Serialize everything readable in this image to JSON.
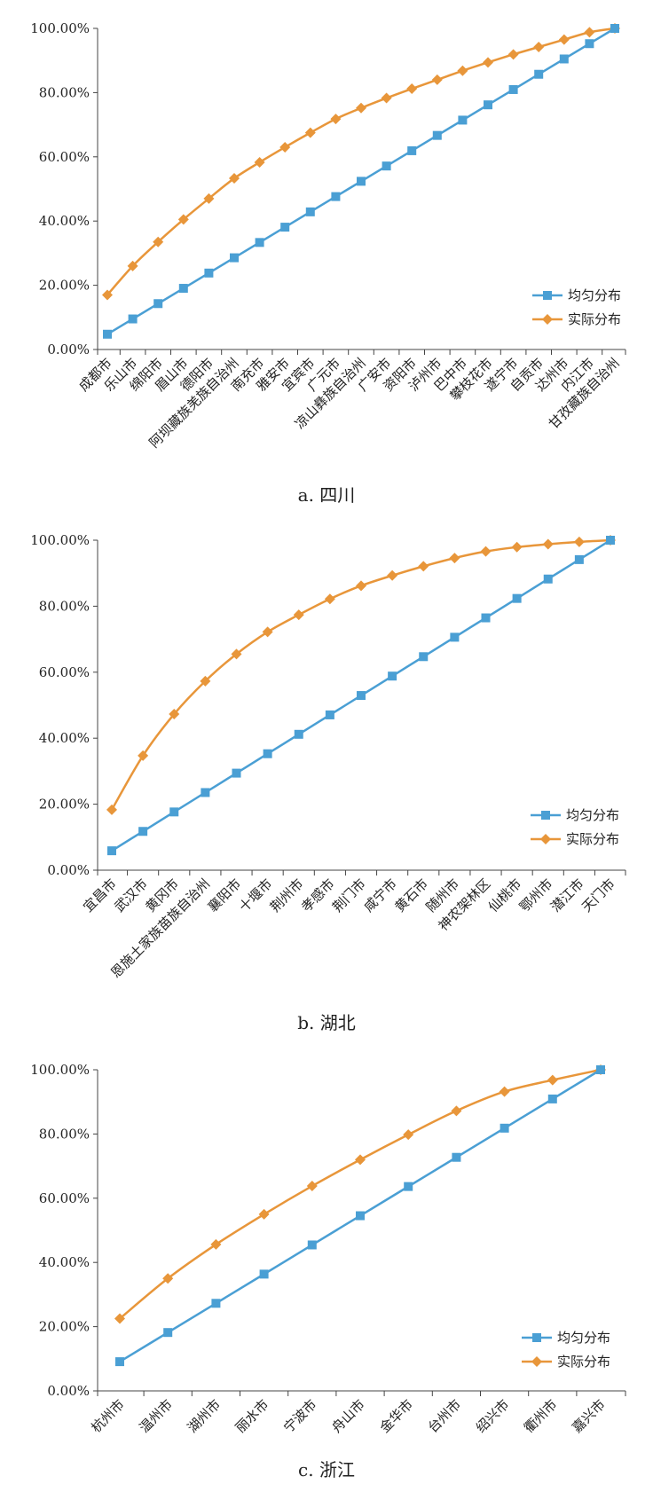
{
  "chart_data": [
    {
      "type": "line",
      "caption": "a. 四川",
      "ylim": [
        0,
        100
      ],
      "yticks": [
        "0.00%",
        "20.00%",
        "40.00%",
        "60.00%",
        "80.00%",
        "100.00%"
      ],
      "categories": [
        "成都市",
        "乐山市",
        "绵阳市",
        "眉山市",
        "德阳市",
        "阿坝藏族羌族自治州",
        "南充市",
        "雅安市",
        "宜宾市",
        "广元市",
        "凉山彝族自治州",
        "广安市",
        "资阳市",
        "泸州市",
        "巴中市",
        "攀枝花市",
        "遂宁市",
        "自贡市",
        "达州市",
        "内江市",
        "甘孜藏族自治州"
      ],
      "series": [
        {
          "name": "均匀分布",
          "color": "#4a9fd4",
          "marker": "square",
          "values": [
            4.76,
            9.52,
            14.29,
            19.05,
            23.81,
            28.57,
            33.33,
            38.1,
            42.86,
            47.62,
            52.38,
            57.14,
            61.9,
            66.67,
            71.43,
            76.19,
            80.95,
            85.71,
            90.48,
            95.24,
            100
          ]
        },
        {
          "name": "实际分布",
          "color": "#e8963a",
          "marker": "diamond",
          "values": [
            17.0,
            26.0,
            33.5,
            40.5,
            47.0,
            53.3,
            58.3,
            63.0,
            67.5,
            71.8,
            75.2,
            78.3,
            81.2,
            84.0,
            86.8,
            89.4,
            91.9,
            94.2,
            96.5,
            98.8,
            100
          ]
        }
      ],
      "legend_position": "bottom-right",
      "grid": false
    },
    {
      "type": "line",
      "caption": "b. 湖北",
      "ylim": [
        0,
        100
      ],
      "yticks": [
        "0.00%",
        "20.00%",
        "40.00%",
        "60.00%",
        "80.00%",
        "100.00%"
      ],
      "categories": [
        "宜昌市",
        "武汉市",
        "黄冈市",
        "恩施土家族苗族自治州",
        "襄阳市",
        "十堰市",
        "荆州市",
        "孝感市",
        "荆门市",
        "咸宁市",
        "黄石市",
        "随州市",
        "神农架林区",
        "仙桃市",
        "鄂州市",
        "潜江市",
        "天门市"
      ],
      "series": [
        {
          "name": "均匀分布",
          "color": "#4a9fd4",
          "marker": "square",
          "values": [
            5.88,
            11.76,
            17.65,
            23.53,
            29.41,
            35.29,
            41.18,
            47.06,
            52.94,
            58.82,
            64.71,
            70.59,
            76.47,
            82.35,
            88.24,
            94.12,
            100
          ]
        },
        {
          "name": "实际分布",
          "color": "#e8963a",
          "marker": "diamond",
          "values": [
            18.3,
            34.7,
            47.3,
            57.3,
            65.5,
            72.2,
            77.4,
            82.2,
            86.2,
            89.3,
            92.1,
            94.6,
            96.6,
            97.9,
            98.8,
            99.5,
            100
          ]
        }
      ],
      "legend_position": "bottom-right",
      "grid": false
    },
    {
      "type": "line",
      "caption": "c. 浙江",
      "ylim": [
        0,
        100
      ],
      "yticks": [
        "0.00%",
        "20.00%",
        "40.00%",
        "60.00%",
        "80.00%",
        "100.00%"
      ],
      "categories": [
        "杭州市",
        "温州市",
        "湖州市",
        "丽水市",
        "宁波市",
        "舟山市",
        "金华市",
        "台州市",
        "绍兴市",
        "衢州市",
        "嘉兴市"
      ],
      "series": [
        {
          "name": "均匀分布",
          "color": "#4a9fd4",
          "marker": "square",
          "values": [
            9.09,
            18.18,
            27.27,
            36.36,
            45.45,
            54.55,
            63.64,
            72.73,
            81.82,
            90.91,
            100
          ]
        },
        {
          "name": "实际分布",
          "color": "#e8963a",
          "marker": "diamond",
          "values": [
            22.5,
            35.0,
            45.6,
            55.0,
            63.8,
            72.0,
            79.8,
            87.2,
            93.2,
            96.8,
            100
          ]
        }
      ],
      "legend_position": "bottom-right",
      "grid": false
    }
  ]
}
